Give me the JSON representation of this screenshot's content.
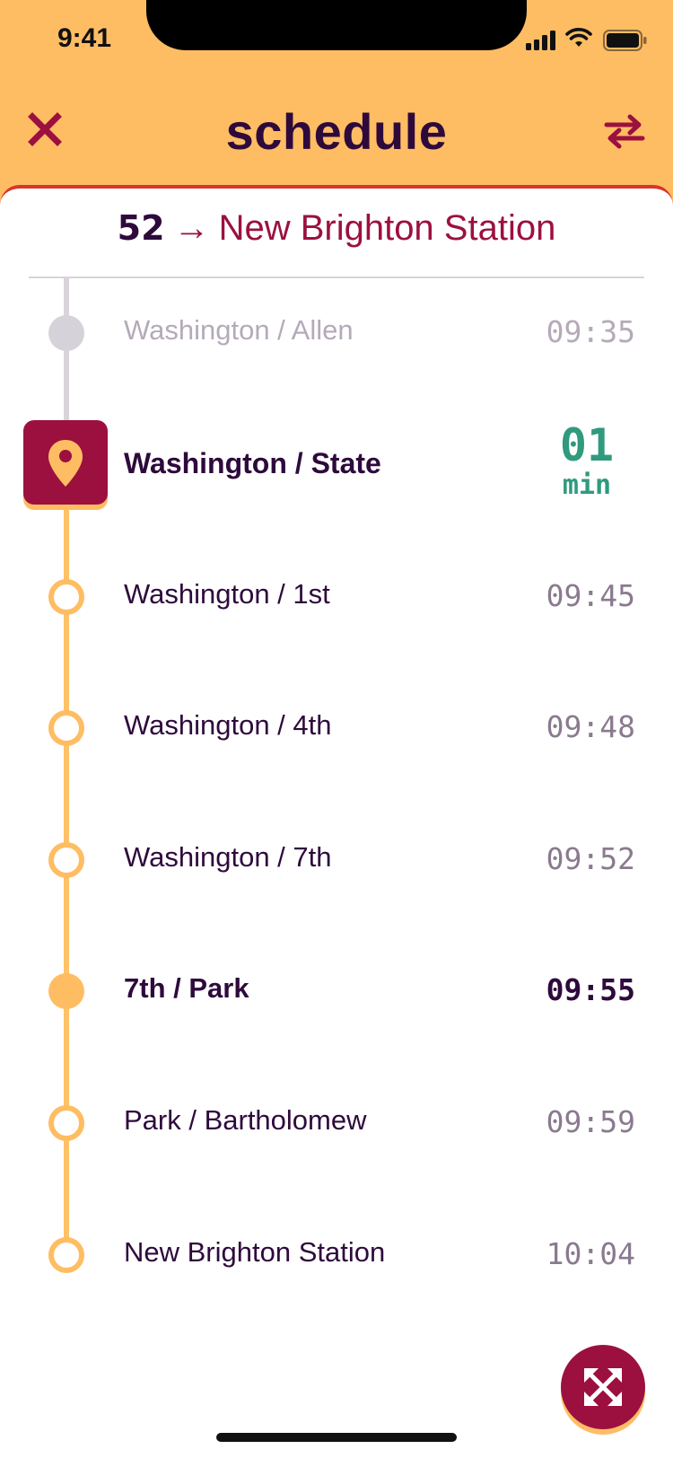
{
  "status_bar": {
    "time": "9:41"
  },
  "header": {
    "title": "schedule"
  },
  "route": {
    "number": "52",
    "arrow": "→",
    "destination": "New Brighton Station"
  },
  "stops": [
    {
      "name": "Washington / Allen",
      "time": "09:35",
      "state": "passed"
    },
    {
      "name": "Washington / State",
      "state": "current",
      "eta_value": "01",
      "eta_unit": "min"
    },
    {
      "name": "Washington / 1st",
      "time": "09:45",
      "state": "upcoming"
    },
    {
      "name": "Washington / 4th",
      "time": "09:48",
      "state": "upcoming"
    },
    {
      "name": "Washington / 7th",
      "time": "09:52",
      "state": "upcoming"
    },
    {
      "name": "7th / Park",
      "time": "09:55",
      "state": "upcoming-highlighted"
    },
    {
      "name": "Park / Bartholomew",
      "time": "09:59",
      "state": "upcoming"
    },
    {
      "name": "New Brighton Station",
      "time": "10:04",
      "state": "upcoming"
    }
  ],
  "icons": {
    "close": "close-icon",
    "swap": "swap-arrows-icon",
    "location": "location-pin-icon",
    "expand": "expand-arrows-icon"
  },
  "colors": {
    "header_bg": "#ffbd63",
    "accent": "#9c1040",
    "text": "#2e0a3c",
    "eta": "#2f9a7e",
    "timeline": "#ffc266"
  }
}
